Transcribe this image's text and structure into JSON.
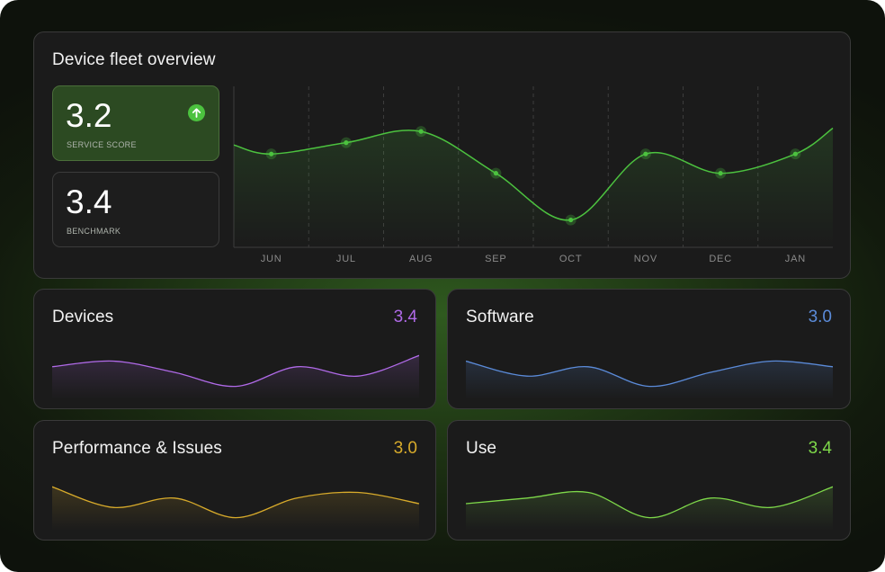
{
  "overview": {
    "title": "Device fleet overview",
    "service_score": {
      "value": "3.2",
      "label": "SERVICE SCORE",
      "icon": "arrow-up-icon",
      "icon_color": "#4cc23f"
    },
    "benchmark": {
      "value": "3.4",
      "label": "BENCHMARK"
    }
  },
  "chart_data": {
    "type": "line",
    "categories": [
      "JUN",
      "JUL",
      "AUG",
      "SEP",
      "OCT",
      "NOV",
      "DEC",
      "JAN"
    ],
    "values": [
      0.58,
      0.65,
      0.72,
      0.46,
      0.17,
      0.58,
      0.46,
      0.58
    ],
    "series_color": "#4cc23f",
    "grid": "vertical dashed",
    "legend": "none"
  },
  "cards": [
    {
      "name": "Devices",
      "value": "3.4",
      "color": "#b06ae8",
      "curve": [
        0.62,
        0.74,
        0.5,
        0.2,
        0.62,
        0.42,
        0.86
      ]
    },
    {
      "name": "Software",
      "value": "3.0",
      "color": "#5b8bd9",
      "curve": [
        0.74,
        0.42,
        0.62,
        0.2,
        0.5,
        0.74,
        0.62
      ]
    },
    {
      "name": "Performance & Issues",
      "value": "3.0",
      "color": "#d8ab2b",
      "curve": [
        0.86,
        0.42,
        0.62,
        0.2,
        0.62,
        0.74,
        0.5
      ]
    },
    {
      "name": "Use",
      "value": "3.4",
      "color": "#7ed84a",
      "curve": [
        0.5,
        0.62,
        0.74,
        0.2,
        0.62,
        0.42,
        0.86
      ]
    }
  ]
}
